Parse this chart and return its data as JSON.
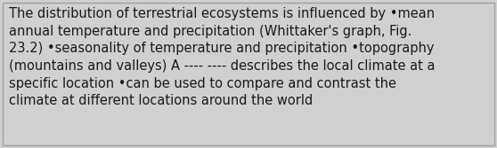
{
  "lines": [
    "The distribution of terrestrial ecosystems is influenced by •mean",
    "annual temperature and precipitation (Whittaker's graph, Fig.",
    "23.2) •seasonality of temperature and precipitation •topography",
    "(mountains and valleys) A ---- ---- describes the local climate at a",
    "specific location •can be used to compare and contrast the",
    "climate at different locations around the world"
  ],
  "background_color": "#d0d0d0",
  "border_color": "#a0a0a0",
  "text_color": "#1a1a1a",
  "font_size": 10.5,
  "fig_width": 5.58,
  "fig_height": 1.67,
  "dpi": 100
}
